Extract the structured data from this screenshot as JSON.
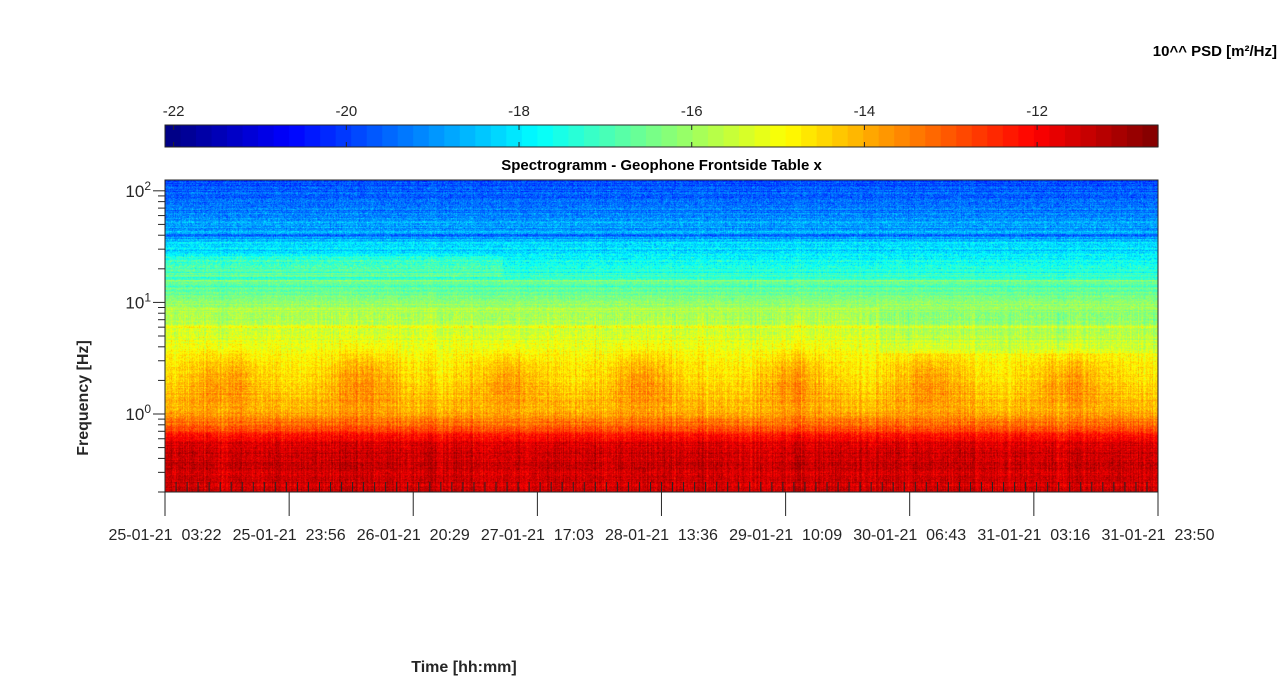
{
  "chart_data": {
    "type": "heatmap",
    "title": "Spectrogramm - Geophone Frontside Table x",
    "xlabel": "Time [hh:mm]",
    "ylabel": "Frequency [Hz]",
    "colorbar_label": "10^^ PSD [m²/Hz]",
    "colorbar": {
      "range": [
        -22.1,
        -10.6
      ],
      "ticks": [
        -22,
        -20,
        -18,
        -16,
        -14,
        -12
      ],
      "tick_labels": [
        "-22",
        "-20",
        "-18",
        "-16",
        "-14",
        "-12"
      ],
      "colormap": "jet",
      "placement": "top"
    },
    "x_axis": {
      "ticks": [
        {
          "pos": 0,
          "label": "25-01-21  03:22"
        },
        {
          "pos": 0.1429,
          "label": "25-01-21  23:56"
        },
        {
          "pos": 0.2857,
          "label": "26-01-21  20:29"
        },
        {
          "pos": 0.4286,
          "label": "27-01-21  17:03"
        },
        {
          "pos": 0.5714,
          "label": "28-01-21  13:36"
        },
        {
          "pos": 0.7143,
          "label": "29-01-21  10:09"
        },
        {
          "pos": 0.8571,
          "label": "30-01-21  06:43"
        },
        {
          "pos": 1,
          "label": "31-01-21  03:16"
        },
        {
          "pos": 1.1429,
          "label": "31-01-21  23:50"
        }
      ],
      "minor_ticks": 90
    },
    "y_axis": {
      "scale": "log",
      "range": [
        0.2,
        125
      ],
      "ticks": [
        {
          "value": 1,
          "base": "10",
          "exp": "0"
        },
        {
          "value": 10,
          "base": "10",
          "exp": "1"
        },
        {
          "value": 100,
          "base": "10",
          "exp": "2"
        }
      ]
    },
    "spectrum_profile": [
      {
        "f": 0.2,
        "psd": -11.6
      },
      {
        "f": 0.35,
        "psd": -11.4
      },
      {
        "f": 0.55,
        "psd": -11.7
      },
      {
        "f": 0.7,
        "psd": -12.6
      },
      {
        "f": 1.0,
        "psd": -14.0
      },
      {
        "f": 1.6,
        "psd": -14.4
      },
      {
        "f": 3.0,
        "psd": -14.8
      },
      {
        "f": 6.0,
        "psd": -15.6
      },
      {
        "f": 10,
        "psd": -16.2
      },
      {
        "f": 20,
        "psd": -17.4
      },
      {
        "f": 40,
        "psd": -18.7
      },
      {
        "f": 125,
        "psd": -19.8
      }
    ],
    "spectral_lines": [
      {
        "f": 6.0,
        "psd": -14.7
      },
      {
        "f": 15.5,
        "psd": -15.8
      },
      {
        "f": 40,
        "psd": -19.6
      }
    ],
    "daily_peaks_x": [
      0.06,
      0.2,
      0.345,
      0.48,
      0.63,
      0.77,
      0.91
    ]
  }
}
